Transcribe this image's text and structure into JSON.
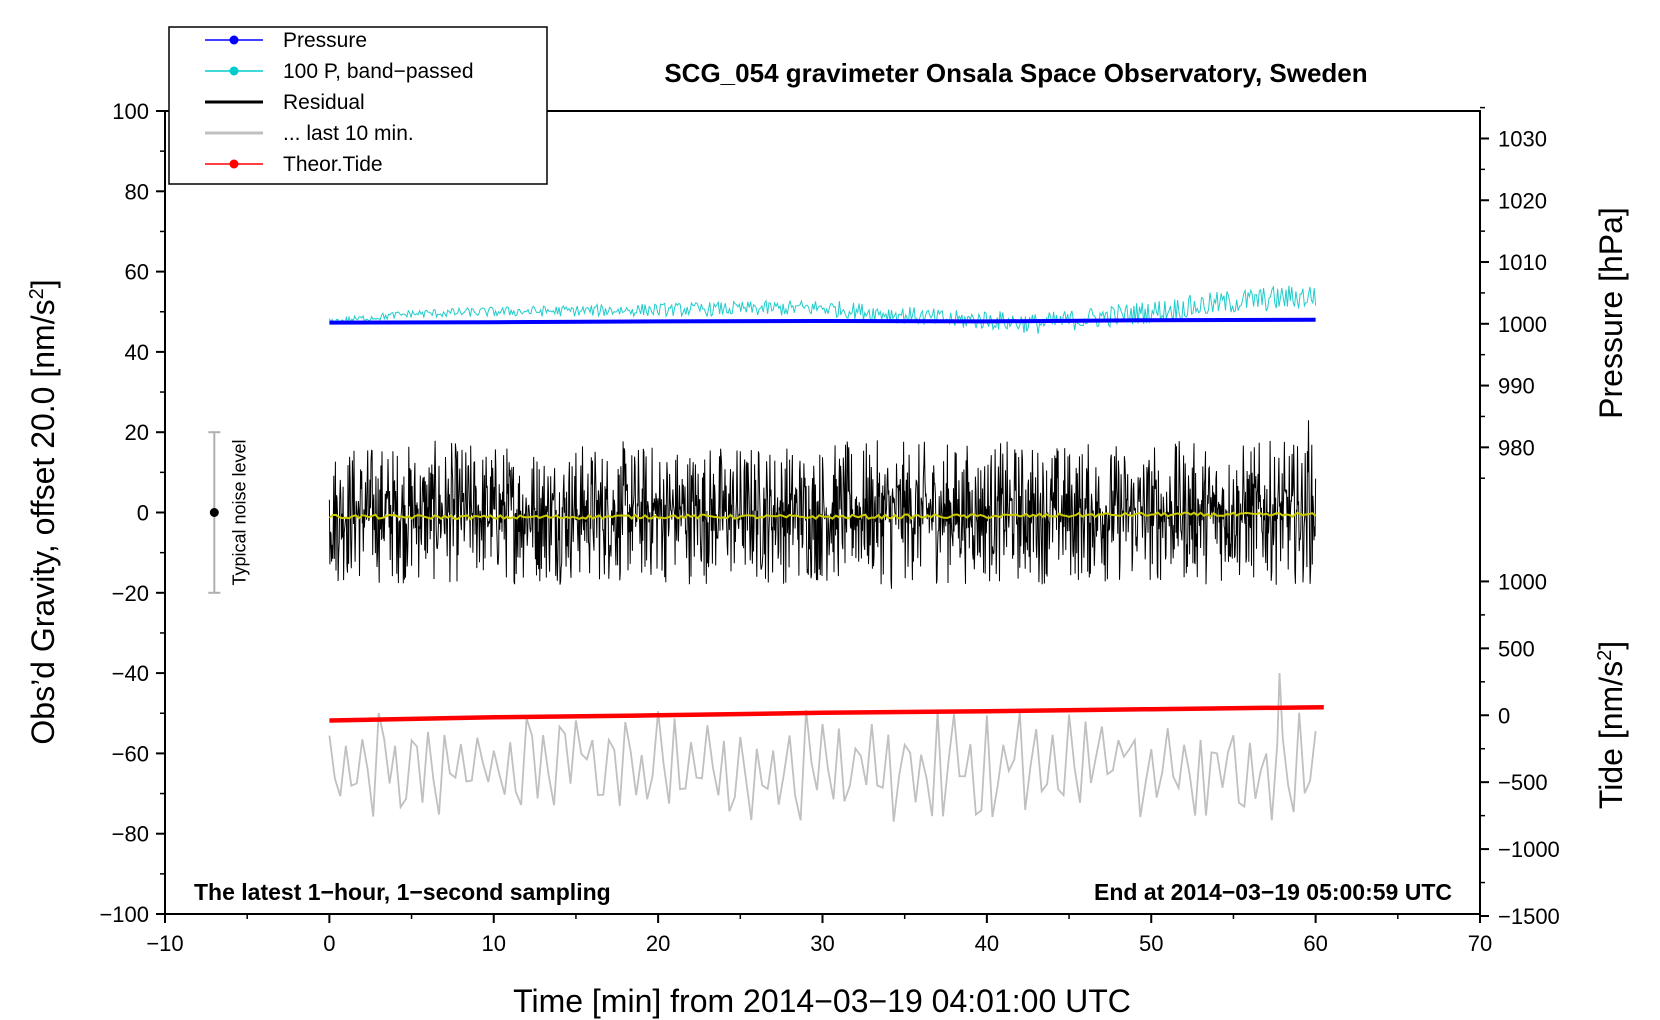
{
  "chart_data": {
    "type": "line",
    "title": "SCG_054 gravimeter Onsala Space Observatory, Sweden",
    "xlabel": "Time [min] from 2014−03−19 04:01:00 UTC",
    "ylabel": "Obs’d Gravity, offset 20.0 [nm/s²]",
    "ylabel_main": "Obs’d Gravity, offset 20.0 [nm/s",
    "ylabel_sup": "2",
    "ylabel_close": "]",
    "xlim": [
      -10,
      70
    ],
    "ylim": [
      -100,
      100
    ],
    "x_ticks": [
      -10,
      0,
      10,
      20,
      30,
      40,
      50,
      60,
      70
    ],
    "x_tick_labels": [
      "−10",
      "0",
      "10",
      "20",
      "30",
      "40",
      "50",
      "60",
      "70"
    ],
    "y_ticks": [
      -100,
      -80,
      -60,
      -40,
      -20,
      0,
      20,
      40,
      60,
      80,
      100
    ],
    "y_tick_labels": [
      "−100",
      "−80",
      "−60",
      "−40",
      "−20",
      "0",
      "20",
      "40",
      "60",
      "80",
      "100"
    ],
    "pressure_axis": {
      "label": "Pressure [hPa]",
      "ticks": [
        980,
        990,
        1000,
        1010,
        1020,
        1030
      ],
      "tick_labels": [
        "980",
        "990",
        "1000",
        "1010",
        "1020",
        "1030"
      ],
      "reference": {
        "pressure": 1000,
        "gravity_value": 47
      },
      "hpa_per_gravity_unit": 0.65
    },
    "tide_axis": {
      "label_main": "Tide [nm/s",
      "label_sup": "2",
      "label_close": "]",
      "ticks": [
        -1500,
        -1000,
        -500,
        0,
        500,
        1000
      ],
      "tick_labels": [
        "−1500",
        "−1000",
        "−500",
        "0",
        "500",
        "1000"
      ],
      "reference": {
        "tide": 0,
        "gravity_value": -50.5
      },
      "tide_per_gravity_unit": 30
    },
    "legend": [
      {
        "label": "Pressure",
        "color": "#0000ff",
        "marker": true
      },
      {
        "label": "100 P, band−passed",
        "color": "#00cccc",
        "marker": true
      },
      {
        "label": "Residual",
        "color": "#000000",
        "marker": false
      },
      {
        "label": "... last 10 min.",
        "color": "#c0c0c0",
        "marker": false
      },
      {
        "label": "Theor.Tide",
        "color": "#ff0000",
        "marker": true
      }
    ],
    "series": [
      {
        "name": "Pressure",
        "color": "#0000ff",
        "x": [
          0,
          10,
          20,
          30,
          40,
          50,
          60
        ],
        "y": [
          47.3,
          47.4,
          47.6,
          47.7,
          47.6,
          47.9,
          48.0
        ]
      },
      {
        "name": "100 P, band−passed",
        "color": "#22cccc",
        "x": [
          0,
          5,
          10,
          20,
          30,
          38,
          40,
          43,
          50,
          55,
          60
        ],
        "y": [
          47.5,
          49.5,
          50,
          50.5,
          51,
          48,
          48,
          47,
          50,
          52.5,
          54
        ]
      },
      {
        "name": "Residual",
        "color": "#000000",
        "x": [
          0,
          60
        ],
        "y": [
          0,
          0
        ],
        "amplitude": 18,
        "peak_max": 23,
        "peak_min": -19
      },
      {
        "name": "Residual smoothed",
        "color": "#cccc00",
        "x": [
          0,
          10,
          20,
          30,
          40,
          50,
          60
        ],
        "y": [
          -1,
          -1.2,
          -1,
          -1.1,
          -0.9,
          -0.5,
          -0.6
        ]
      },
      {
        "name": "... last 10 min.",
        "color": "#c0c0c0",
        "x": [
          0,
          60
        ],
        "y": [
          -63,
          -63
        ],
        "amplitude": 15,
        "peak_max": -40,
        "peak_min": -77
      },
      {
        "name": "Theor.Tide",
        "color": "#ff0000",
        "x": [
          0,
          10,
          20,
          30,
          40,
          50,
          60.5
        ],
        "y": [
          -51.8,
          -51.0,
          -50.5,
          -49.9,
          -49.5,
          -49.0,
          -48.5
        ]
      }
    ],
    "noise_bar": {
      "x": -7,
      "center": 0,
      "low": -20,
      "high": 20,
      "label": "Typical noise level"
    },
    "notes": {
      "left": "The latest 1−hour, 1−second sampling",
      "right": "End at 2014−03−19 05:00:59 UTC"
    }
  }
}
